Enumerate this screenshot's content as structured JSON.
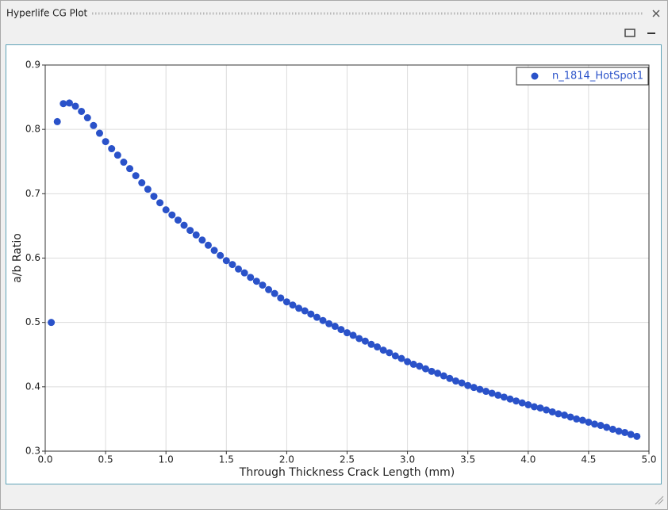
{
  "window": {
    "title": "Hyperlife CG Plot"
  },
  "chart_data": {
    "type": "scatter",
    "xlabel": "Through Thickness Crack Length (mm)",
    "ylabel": "a/b Ratio",
    "xlim": [
      0,
      5
    ],
    "ylim": [
      0.3,
      0.9
    ],
    "xticks": [
      {
        "value": 0,
        "label": "0.0"
      },
      0.5,
      {
        "value": 1,
        "label": "1.0"
      },
      1.5,
      {
        "value": 2,
        "label": "2.0"
      },
      2.5,
      {
        "value": 3,
        "label": "3.0"
      },
      3.5,
      {
        "value": 4,
        "label": "4.0"
      },
      4.5,
      {
        "value": 5,
        "label": "5.0"
      }
    ],
    "yticks": [
      0.3,
      0.4,
      0.5,
      0.6,
      0.7,
      0.8,
      0.9
    ],
    "grid": true,
    "legend": "upper right",
    "series": [
      {
        "name": "n_1814_HotSpot1",
        "color": "#2a52c9",
        "x": [
          0.05,
          0.1,
          0.15,
          0.2,
          0.25,
          0.3,
          0.35,
          0.4,
          0.45,
          0.5,
          0.55,
          0.6,
          0.65,
          0.7,
          0.75,
          0.8,
          0.85,
          0.9,
          0.95,
          1.0,
          1.05,
          1.1,
          1.15,
          1.2,
          1.25,
          1.3,
          1.35,
          1.4,
          1.45,
          1.5,
          1.55,
          1.6,
          1.65,
          1.7,
          1.75,
          1.8,
          1.85,
          1.9,
          1.95,
          2.0,
          2.05,
          2.1,
          2.15,
          2.2,
          2.25,
          2.3,
          2.35,
          2.4,
          2.45,
          2.5,
          2.55,
          2.6,
          2.65,
          2.7,
          2.75,
          2.8,
          2.85,
          2.9,
          2.95,
          3.0,
          3.05,
          3.1,
          3.15,
          3.2,
          3.25,
          3.3,
          3.35,
          3.4,
          3.45,
          3.5,
          3.55,
          3.6,
          3.65,
          3.7,
          3.75,
          3.8,
          3.85,
          3.9,
          3.95,
          4.0,
          4.05,
          4.1,
          4.15,
          4.2,
          4.25,
          4.3,
          4.35,
          4.4,
          4.45,
          4.5,
          4.55,
          4.6,
          4.65,
          4.7,
          4.75,
          4.8,
          4.85,
          4.9
        ],
        "values": [
          0.5,
          0.812,
          0.84,
          0.841,
          0.836,
          0.828,
          0.818,
          0.806,
          0.794,
          0.781,
          0.77,
          0.76,
          0.749,
          0.739,
          0.728,
          0.717,
          0.707,
          0.696,
          0.686,
          0.675,
          0.667,
          0.659,
          0.651,
          0.643,
          0.636,
          0.628,
          0.62,
          0.612,
          0.604,
          0.596,
          0.59,
          0.583,
          0.577,
          0.57,
          0.564,
          0.558,
          0.551,
          0.545,
          0.538,
          0.532,
          0.527,
          0.522,
          0.518,
          0.513,
          0.508,
          0.503,
          0.498,
          0.494,
          0.489,
          0.484,
          0.48,
          0.475,
          0.471,
          0.466,
          0.462,
          0.457,
          0.453,
          0.448,
          0.444,
          0.439,
          0.435,
          0.432,
          0.428,
          0.424,
          0.421,
          0.417,
          0.413,
          0.409,
          0.406,
          0.402,
          0.399,
          0.396,
          0.393,
          0.39,
          0.387,
          0.384,
          0.381,
          0.378,
          0.375,
          0.372,
          0.369,
          0.367,
          0.364,
          0.361,
          0.358,
          0.356,
          0.353,
          0.35,
          0.348,
          0.345,
          0.342,
          0.34,
          0.337,
          0.334,
          0.331,
          0.329,
          0.326,
          0.323
        ]
      }
    ]
  }
}
